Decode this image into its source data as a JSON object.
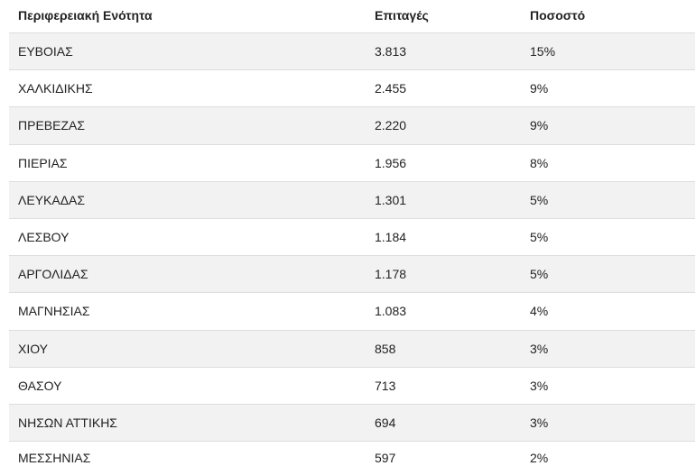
{
  "table": {
    "headers": [
      "Περιφερειακή Ενότητα",
      "Επιταγές",
      "Ποσοστό"
    ],
    "rows": [
      [
        "ΕΥΒΟΙΑΣ",
        "3.813",
        "15%"
      ],
      [
        "ΧΑΛΚΙΔΙΚΗΣ",
        "2.455",
        "9%"
      ],
      [
        "ΠΡΕΒΕΖΑΣ",
        "2.220",
        "9%"
      ],
      [
        "ΠΙΕΡΙΑΣ",
        "1.956",
        "8%"
      ],
      [
        "ΛΕΥΚΑΔΑΣ",
        "1.301",
        "5%"
      ],
      [
        "ΛΕΣΒΟΥ",
        "1.184",
        "5%"
      ],
      [
        "ΑΡΓΟΛΙΔΑΣ",
        "1.178",
        "5%"
      ],
      [
        "ΜΑΓΝΗΣΙΑΣ",
        "1.083",
        "4%"
      ],
      [
        "ΧΙΟΥ",
        "858",
        "3%"
      ],
      [
        "ΘΑΣΟΥ",
        "713",
        "3%"
      ],
      [
        "ΝΗΣΩΝ ΑΤΤΙΚΗΣ",
        "694",
        "3%"
      ],
      [
        "ΜΕΣΣΗΝΙΑΣ",
        "597",
        "2%"
      ]
    ]
  },
  "colors": {
    "stripe": "#f2f2f2",
    "border": "#dddddd",
    "text": "#222222"
  }
}
